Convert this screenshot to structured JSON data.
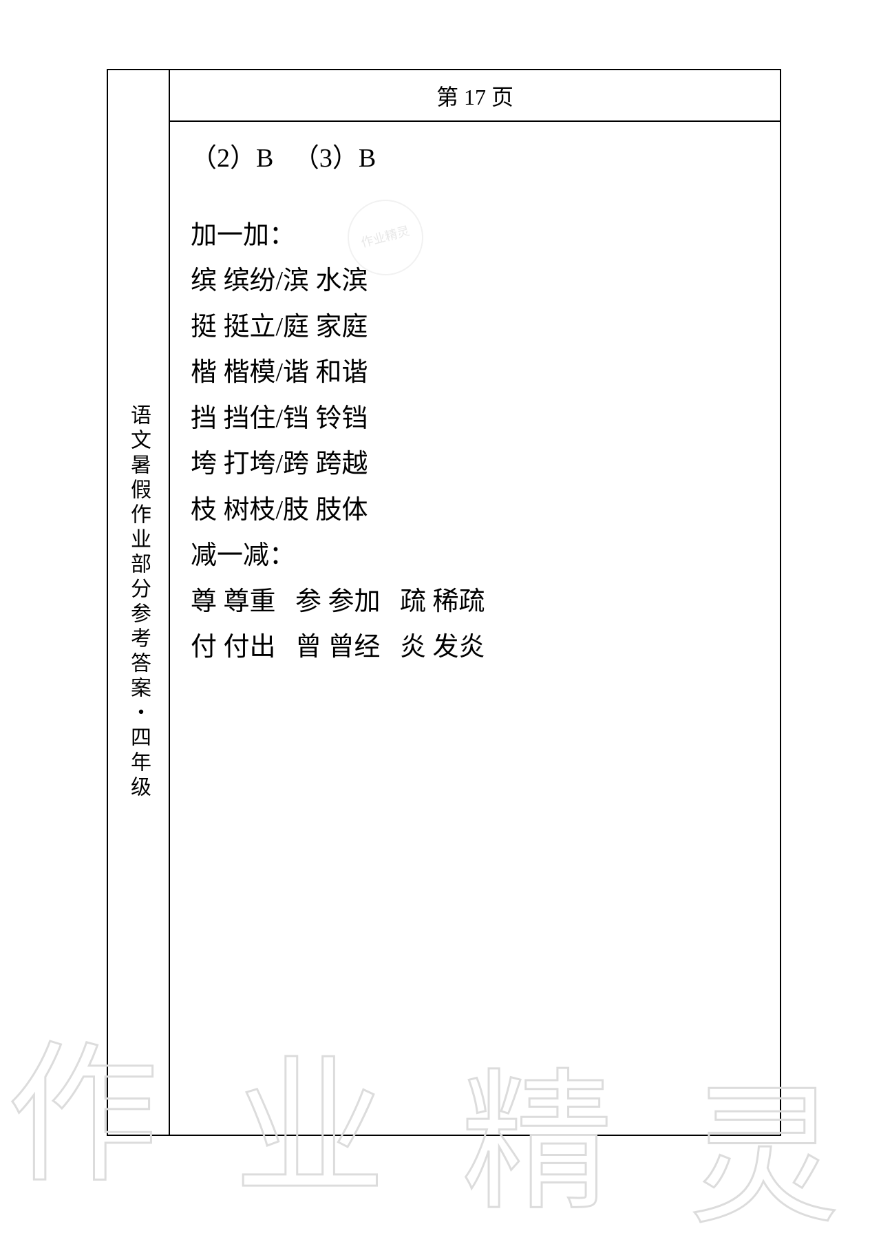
{
  "header": {
    "page_label": "第 17 页"
  },
  "sidebar": {
    "title": "语文暑假作业部分参考答案・四年级"
  },
  "content": {
    "line1": "（2）B   （3）B",
    "section1_title": "加一加：",
    "add_lines": [
      "缤 缤纷/滨 水滨",
      "挺 挺立/庭 家庭",
      "楷 楷模/谐 和谐",
      "挡 挡住/铛 铃铛",
      "垮 打垮/跨 跨越",
      "枝 树枝/肢 肢体"
    ],
    "section2_title": "减一减：",
    "sub_lines": [
      "尊 尊重   参 参加   疏 稀疏",
      "付 付出   曾 曾经   炎 发炎"
    ]
  },
  "watermark": {
    "seal_text": "作业精灵",
    "chars": [
      "作",
      "业",
      "精",
      "灵"
    ]
  }
}
